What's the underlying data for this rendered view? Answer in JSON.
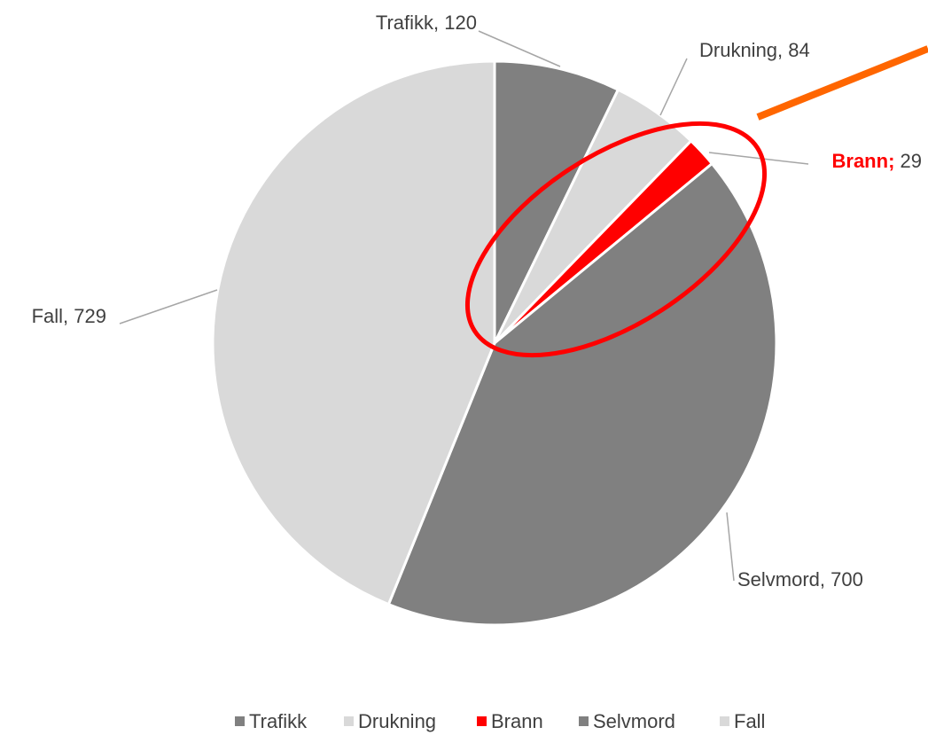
{
  "chart_data": {
    "type": "pie",
    "categories": [
      "Trafikk",
      "Drukning",
      "Brann",
      "Selvmord",
      "Fall"
    ],
    "values": [
      120,
      84,
      29,
      700,
      729
    ],
    "colors": [
      "#808080",
      "#d9d9d9",
      "#ff0000",
      "#808080",
      "#d9d9d9"
    ],
    "label_separators": [
      ", ",
      ", ",
      "; ",
      ", ",
      ", "
    ],
    "legend": "bottom"
  }
}
